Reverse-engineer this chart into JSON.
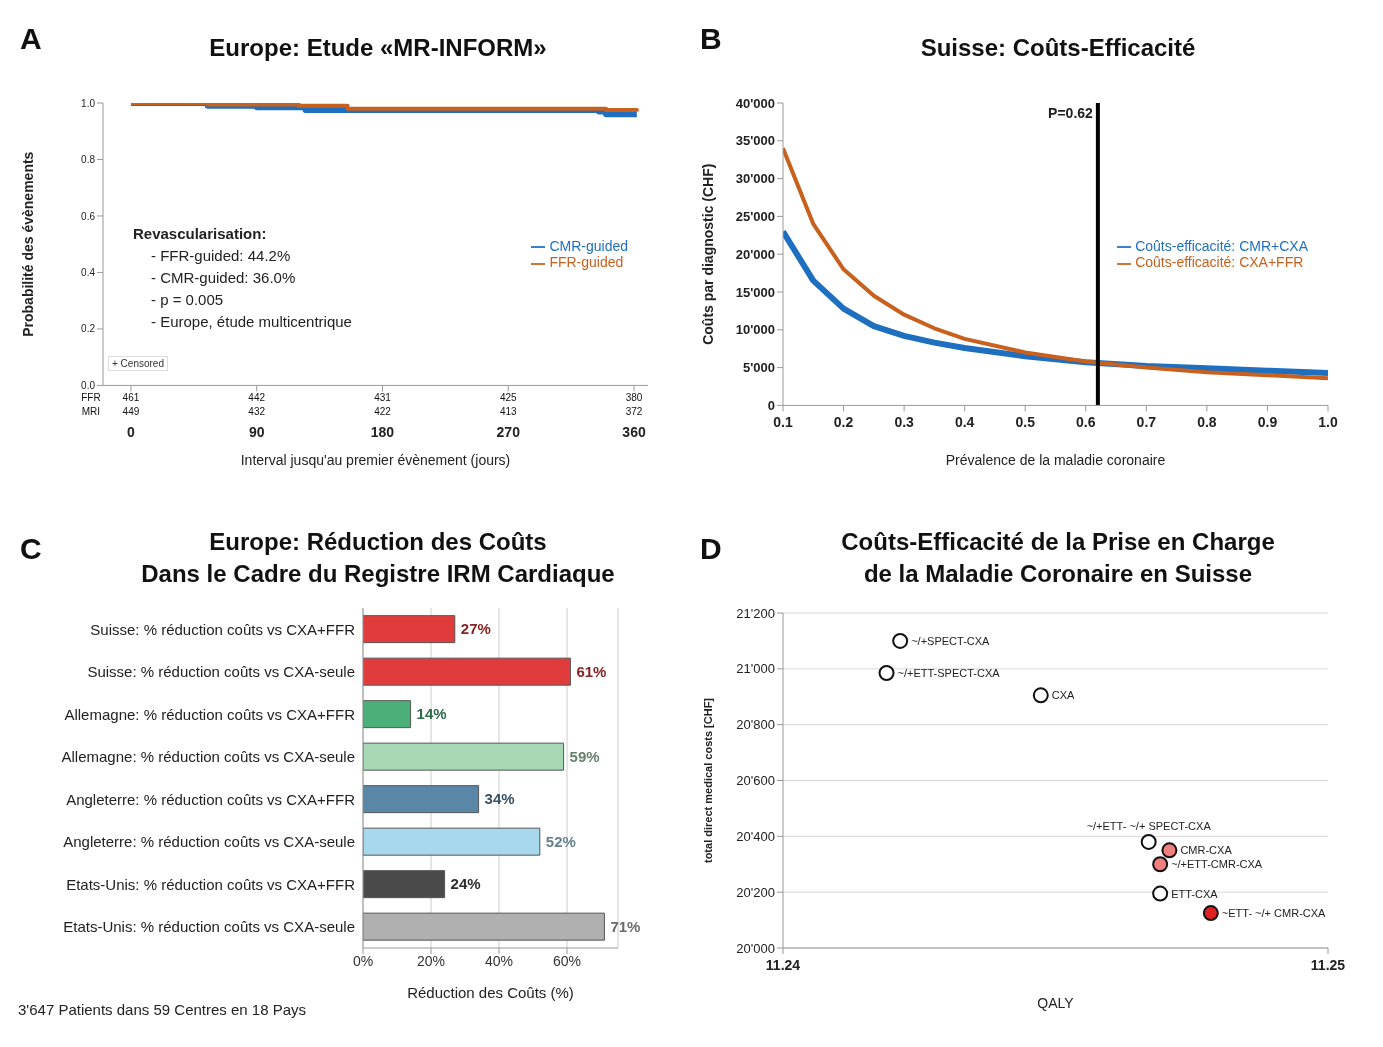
{
  "chart_data": [
    {
      "type": "step",
      "title": "Europe: Etude «MR-INFORM»",
      "xlabel": "Interval jusqu'au premier évènement (jours)",
      "ylabel": "Probabilité des évènements",
      "annotations": [
        "A",
        "Revascularisation:",
        "- FFR-guided: 44.2%",
        "- CMR-guided: 36.0%",
        "- p = 0.005",
        "- Europe, étude multicentrique",
        "+ Censored",
        "FFR",
        "461",
        "442",
        "431",
        "425",
        "380",
        "MRI",
        "449",
        "432",
        "422",
        "413",
        "372"
      ],
      "series": [
        {
          "name": "CMR-guided",
          "color": "#1f6fc0",
          "x": [
            0,
            55,
            90,
            120,
            125,
            300,
            335,
            340,
            362
          ],
          "values": [
            1.0,
            0.99,
            0.985,
            0.985,
            0.975,
            0.975,
            0.97,
            0.96,
            0.96
          ]
        },
        {
          "name": "FFR-guided",
          "color": "#c8601e",
          "x": [
            0,
            55,
            120,
            155,
            340,
            362
          ],
          "values": [
            1.0,
            0.995,
            0.99,
            0.98,
            0.975,
            0.97
          ]
        }
      ],
      "xlim": [
        -20,
        370
      ],
      "xticks": [
        0,
        90,
        180,
        270,
        360
      ],
      "ylim": [
        0,
        1
      ],
      "yticks": [
        {
          "value": 0,
          "label": "0.0"
        },
        {
          "value": 0.2,
          "label": "0.2"
        },
        {
          "value": 0.4,
          "label": "0.4"
        },
        {
          "value": 0.6,
          "label": "0.6"
        },
        {
          "value": 0.8,
          "label": "0.8"
        },
        {
          "value": 1,
          "label": "1.0"
        }
      ],
      "legend": "right",
      "marker": "none"
    },
    {
      "type": "line",
      "title": "Suisse: Coûts-Efficacité",
      "xlabel": "Prévalence de la maladie coronaire",
      "ylabel": "Coûts par diagnostic (CHF)",
      "annotations": [
        "B"
      ],
      "series": [
        {
          "name": "Coûts-efficacité: CMR+CXA",
          "color": "#1f6fc0",
          "x": [
            0.1,
            0.15,
            0.2,
            0.25,
            0.3,
            0.35,
            0.4,
            0.5,
            0.6,
            0.7,
            0.8,
            0.9,
            1.0
          ],
          "values": [
            23000,
            16500,
            12800,
            10500,
            9200,
            8300,
            7600,
            6500,
            5700,
            5200,
            4900,
            4600,
            4300
          ]
        },
        {
          "name": "Coûts-efficacité: CXA+FFR",
          "color": "#c8601e",
          "x": [
            0.1,
            0.15,
            0.2,
            0.25,
            0.3,
            0.35,
            0.4,
            0.5,
            0.6,
            0.7,
            0.8,
            0.9,
            1.0
          ],
          "values": [
            34000,
            24000,
            18000,
            14500,
            12000,
            10200,
            8800,
            7000,
            5800,
            5000,
            4400,
            4000,
            3600
          ]
        }
      ],
      "xlim": [
        0.1,
        1.0
      ],
      "xticks": [
        0.1,
        0.2,
        0.3,
        0.4,
        0.5,
        0.6,
        0.7,
        0.8,
        0.9,
        {
          "value": 1,
          "label": "1.0"
        }
      ],
      "ylim": [
        0,
        40000
      ],
      "yticks": [
        0,
        {
          "value": 5000,
          "label": "5'000"
        },
        {
          "value": 10000,
          "label": "10'000"
        },
        {
          "value": 15000,
          "label": "15'000"
        },
        {
          "value": 20000,
          "label": "20'000"
        },
        {
          "value": 25000,
          "label": "25'000"
        },
        {
          "value": 30000,
          "label": "30'000"
        },
        {
          "value": 35000,
          "label": "35'000"
        },
        {
          "value": 40000,
          "label": "40'000"
        }
      ],
      "ref_lines": [
        {
          "axis": "x",
          "value": 0.62,
          "label": "P=0.62",
          "color": "#000000"
        }
      ],
      "legend": "right",
      "marker": "none"
    },
    {
      "type": "bar",
      "orientation": "horizontal",
      "title": "Europe: Réduction des Coûts\nDans le Cadre du Registre IRM Cardiaque",
      "xlabel": "Réduction des Coûts (%)",
      "annotations": [
        "C",
        "3'647 Patients dans 59 Centres en 18 Pays"
      ],
      "categories": [
        "Suisse: % réduction coûts vs CXA+FFR",
        "Suisse: % réduction coûts vs CXA-seule",
        "Allemagne: % réduction coûts vs CXA+FFR",
        "Allemagne: % réduction coûts vs CXA-seule",
        "Angleterre: % réduction coûts vs CXA+FFR",
        "Angleterre: % réduction coûts vs CXA-seule",
        "Etats-Unis: % réduction coûts vs CXA+FFR",
        "Etats-Unis: % réduction coûts vs CXA-seule"
      ],
      "values": [
        27,
        61,
        14,
        59,
        34,
        52,
        24,
        71
      ],
      "colors": [
        "#e03c3c",
        "#e03c3c",
        "#4caf7a",
        "#a8d8b5",
        "#5a86a8",
        "#a8d8ee",
        "#4a4a4a",
        "#b0b0b0"
      ],
      "value_labels": [
        "27%",
        "61%",
        "14%",
        "59%",
        "34%",
        "52%",
        "24%",
        "71%"
      ],
      "xlim": [
        0,
        75
      ],
      "xticks": [
        {
          "value": 0,
          "label": "0%"
        },
        {
          "value": 20,
          "label": "20%"
        },
        {
          "value": 40,
          "label": "40%"
        },
        {
          "value": 60,
          "label": "60%"
        }
      ],
      "grid": "x"
    },
    {
      "type": "scatter",
      "title": "Coûts-Efficacité de la Prise en Charge\nde la Maladie Coronaire en Suisse",
      "xlabel": "QALY",
      "ylabel": "total direct medical costs [CHF]",
      "annotations": [
        "D"
      ],
      "x": [
        11.24215,
        11.2419,
        11.24473,
        11.24671,
        11.24709,
        11.24692,
        11.24692,
        11.24785
      ],
      "values": [
        21100,
        20985,
        20905,
        20380,
        20350,
        20300,
        20195,
        20125
      ],
      "colors": [
        "#ffffff",
        "#ffffff",
        "#ffffff",
        "#ffffff",
        "#f08080",
        "#f08080",
        "#ffffff",
        "#e02020"
      ],
      "value_labels": [
        "~/+SPECT-CXA",
        "~/+ETT-SPECT-CXA",
        "CXA",
        "~/+ETT- ~/+ SPECT-CXA",
        "CMR-CXA",
        "~/+ETT-CMR-CXA",
        "ETT-CXA",
        "~ETT- ~/+ CMR-CXA"
      ],
      "xlim": [
        11.24,
        11.25
      ],
      "xticks": [
        11.24,
        11.25
      ],
      "ylim": [
        20000,
        21200
      ],
      "yticks": [
        {
          "value": 20000,
          "label": "20'000"
        },
        {
          "value": 20200,
          "label": "20'200"
        },
        {
          "value": 20400,
          "label": "20'400"
        },
        {
          "value": 20600,
          "label": "20'600"
        },
        {
          "value": 20800,
          "label": "20'800"
        },
        {
          "value": 21000,
          "label": "21'000"
        },
        {
          "value": 21200,
          "label": "21'200"
        }
      ],
      "grid": "y",
      "marker": "circle"
    }
  ]
}
